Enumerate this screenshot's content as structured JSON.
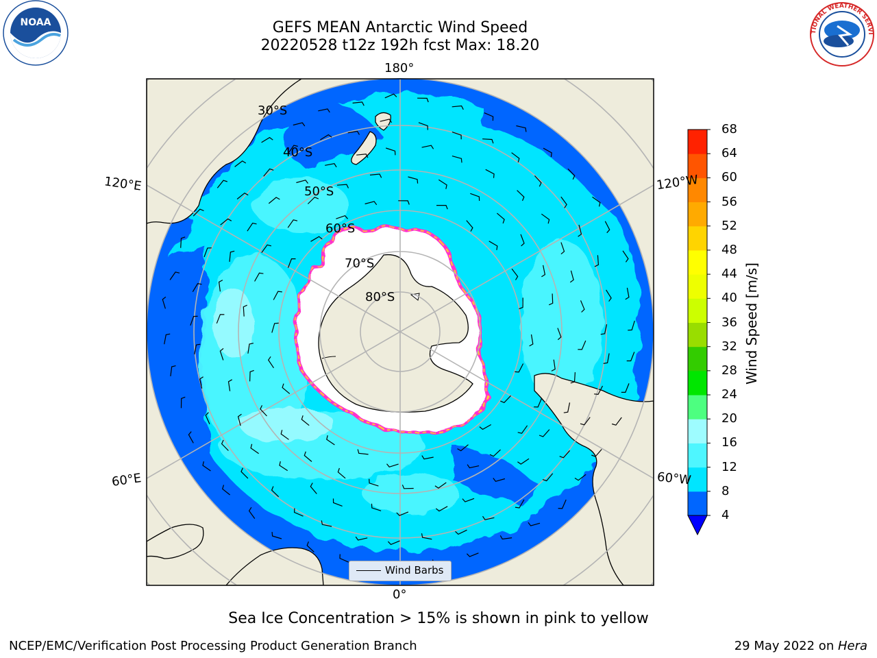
{
  "title": {
    "line1": "GEFS MEAN Antarctic Wind Speed",
    "line2": "20220528 t12z 192h fcst   Max: 18.20"
  },
  "logos": {
    "left": "noaa-logo",
    "right": "national-weather-service-logo"
  },
  "map": {
    "projection": "south-polar-stereographic",
    "longitude_labels": [
      "180°",
      "120°E",
      "120°W",
      "60°E",
      "60°W",
      "0°"
    ],
    "latitude_labels": [
      "30°S",
      "40°S",
      "50°S",
      "60°S",
      "70°S",
      "80°S"
    ],
    "colors": {
      "land": "#eeecdc",
      "sea_ice_interior": "#ffffff",
      "ice_edge": [
        "#ff33cc",
        "#ffd24d"
      ],
      "grid": "#b4b4b4"
    }
  },
  "legend": {
    "label": "Wind Barbs"
  },
  "colorbar": {
    "label": "Wind Speed [m/s]",
    "ticks": [
      "4",
      "8",
      "12",
      "16",
      "20",
      "24",
      "28",
      "32",
      "36",
      "40",
      "44",
      "48",
      "52",
      "56",
      "60",
      "64",
      "68"
    ],
    "colors": [
      "#0066ff",
      "#00e5ff",
      "#4ef6ff",
      "#9efcff",
      "#4dff80",
      "#00e600",
      "#33cc00",
      "#99dd00",
      "#ccff00",
      "#eeff00",
      "#ffff00",
      "#ffd400",
      "#ffaa00",
      "#ff8800",
      "#ff5500",
      "#ff2200",
      "#ff0000"
    ],
    "under_color": "#0000ff"
  },
  "caption": "Sea Ice Concentration > 15% is shown in pink to yellow",
  "footer": {
    "left": "NCEP/EMC/Verification Post Processing Product Generation Branch",
    "right_prefix": "29 May 2022 on ",
    "right_machine": "Hera"
  }
}
